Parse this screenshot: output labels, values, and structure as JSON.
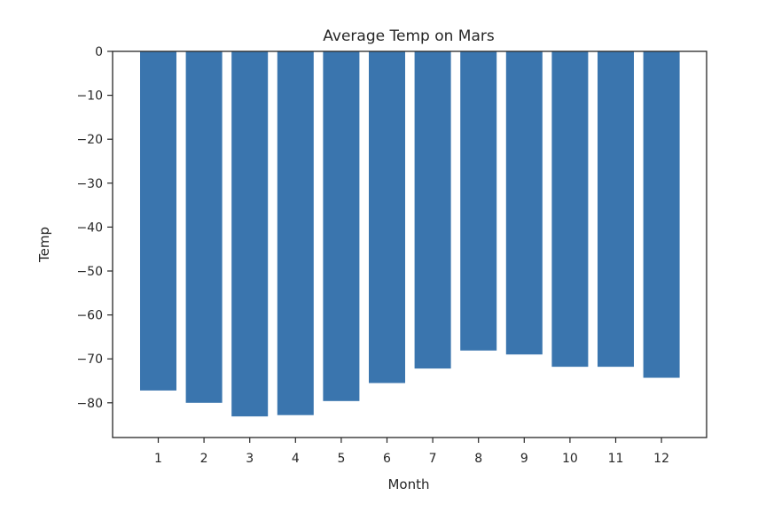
{
  "chart_data": {
    "type": "bar",
    "title": "Average Temp on Mars",
    "xlabel": "Month",
    "ylabel": "Temp",
    "categories": [
      "1",
      "2",
      "3",
      "4",
      "5",
      "6",
      "7",
      "8",
      "9",
      "10",
      "11",
      "12"
    ],
    "values": [
      -77.2,
      -80.0,
      -83.1,
      -82.8,
      -79.6,
      -75.5,
      -72.2,
      -68.1,
      -69.0,
      -71.8,
      -71.8,
      -74.3
    ],
    "yticks": [
      0,
      -10,
      -20,
      -30,
      -40,
      -50,
      -60,
      -70,
      -80
    ],
    "ytick_labels": [
      "0",
      "−10",
      "−20",
      "−30",
      "−40",
      "−50",
      "−60",
      "−70",
      "−80"
    ],
    "ylim": [
      -87.8,
      0
    ],
    "grid": false,
    "legend": null,
    "bar_color": "#3a75ae"
  }
}
